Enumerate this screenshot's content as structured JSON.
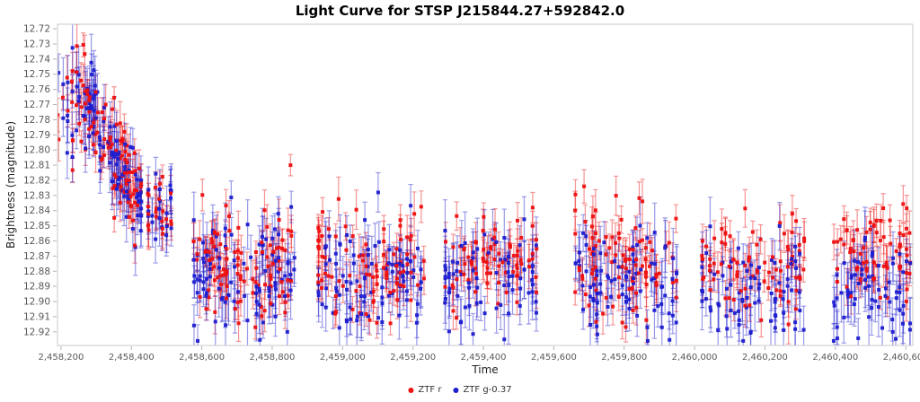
{
  "chart_data": {
    "type": "scatter",
    "title": "Light Curve for STSP J215844.27+592842.0",
    "xlabel": "Time",
    "ylabel": "Brightness (magnitude)",
    "grid": false,
    "legend_position": "bottom-center",
    "x_axis": {
      "min": 2458190,
      "max": 2460620,
      "tick_values": [
        2458200,
        2458400,
        2458600,
        2458800,
        2459000,
        2459200,
        2459400,
        2459600,
        2459800,
        2460000,
        2460200,
        2460400,
        2460600
      ],
      "tick_labels": [
        "2,458,200",
        "2,458,400",
        "2,458,600",
        "2,458,800",
        "2,459,000",
        "2,459,200",
        "2,459,400",
        "2,459,600",
        "2,459,800",
        "2,460,000",
        "2,460,200",
        "2,460,400",
        "2,460,600"
      ]
    },
    "y_axis": {
      "min": 12.717,
      "max": 12.929,
      "inverted": true,
      "tick_values": [
        12.72,
        12.73,
        12.74,
        12.75,
        12.76,
        12.77,
        12.78,
        12.79,
        12.8,
        12.81,
        12.82,
        12.83,
        12.84,
        12.85,
        12.86,
        12.87,
        12.88,
        12.89,
        12.9,
        12.91,
        12.92
      ],
      "tick_labels": [
        "12.72",
        "12.73",
        "12.74",
        "12.75",
        "12.76",
        "12.77",
        "12.78",
        "12.79",
        "12.80",
        "12.81",
        "12.82",
        "12.83",
        "12.84",
        "12.85",
        "12.86",
        "12.87",
        "12.88",
        "12.89",
        "12.90",
        "12.91",
        "12.92"
      ]
    },
    "series": [
      {
        "name": "ZTF r",
        "color": "#ee1010",
        "marker": "square"
      },
      {
        "name": "ZTF g-0.37",
        "color": "#1e1ecf",
        "marker": "square"
      }
    ],
    "seed": 20180921,
    "clusters": [
      {
        "s": 0,
        "t0": 2458192,
        "t1": 2458232,
        "n": 11,
        "m0": 12.775,
        "m1": 12.775,
        "sig": 0.018,
        "err": 0.011,
        "errs": 0.004
      },
      {
        "s": 1,
        "t0": 2458192,
        "t1": 2458232,
        "n": 11,
        "m0": 12.775,
        "m1": 12.775,
        "sig": 0.018,
        "err": 0.014,
        "errs": 0.005
      },
      {
        "s": 0,
        "t0": 2458245,
        "t1": 2458428,
        "n": 95,
        "m0": 12.757,
        "m1": 12.835,
        "sig": 0.016,
        "err": 0.011,
        "errs": 0.004
      },
      {
        "s": 1,
        "t0": 2458245,
        "t1": 2458428,
        "n": 95,
        "m0": 12.757,
        "m1": 12.835,
        "sig": 0.016,
        "err": 0.015,
        "errs": 0.005
      },
      {
        "s": 0,
        "t0": 2458448,
        "t1": 2458480,
        "n": 13,
        "m0": 12.841,
        "m1": 12.841,
        "sig": 0.013,
        "err": 0.011,
        "errs": 0.004
      },
      {
        "s": 1,
        "t0": 2458448,
        "t1": 2458480,
        "n": 12,
        "m0": 12.841,
        "m1": 12.841,
        "sig": 0.013,
        "err": 0.015,
        "errs": 0.005
      },
      {
        "s": 0,
        "t0": 2458488,
        "t1": 2458512,
        "n": 10,
        "m0": 12.845,
        "m1": 12.845,
        "sig": 0.011,
        "err": 0.01,
        "errs": 0.003
      },
      {
        "s": 1,
        "t0": 2458488,
        "t1": 2458512,
        "n": 10,
        "m0": 12.845,
        "m1": 12.845,
        "sig": 0.011,
        "err": 0.014,
        "errs": 0.004
      },
      {
        "s": 0,
        "t0": 2458578,
        "t1": 2458862,
        "n": 105,
        "m0": 12.876,
        "m1": 12.876,
        "sig": 0.019,
        "err": 0.011,
        "errs": 0.004
      },
      {
        "s": 1,
        "t0": 2458578,
        "t1": 2458862,
        "n": 100,
        "m0": 12.885,
        "m1": 12.885,
        "sig": 0.02,
        "err": 0.015,
        "errs": 0.005
      },
      {
        "s": 0,
        "t0": 2458932,
        "t1": 2459232,
        "n": 95,
        "m0": 12.876,
        "m1": 12.876,
        "sig": 0.017,
        "err": 0.011,
        "errs": 0.004
      },
      {
        "s": 1,
        "t0": 2458932,
        "t1": 2459232,
        "n": 92,
        "m0": 12.884,
        "m1": 12.884,
        "sig": 0.018,
        "err": 0.015,
        "errs": 0.005
      },
      {
        "s": 0,
        "t0": 2459292,
        "t1": 2459550,
        "n": 75,
        "m0": 12.877,
        "m1": 12.877,
        "sig": 0.016,
        "err": 0.011,
        "errs": 0.004
      },
      {
        "s": 1,
        "t0": 2459292,
        "t1": 2459550,
        "n": 73,
        "m0": 12.886,
        "m1": 12.886,
        "sig": 0.017,
        "err": 0.016,
        "errs": 0.005
      },
      {
        "s": 0,
        "t0": 2459662,
        "t1": 2459948,
        "n": 92,
        "m0": 12.872,
        "m1": 12.872,
        "sig": 0.018,
        "err": 0.011,
        "errs": 0.004
      },
      {
        "s": 1,
        "t0": 2459662,
        "t1": 2459948,
        "n": 88,
        "m0": 12.887,
        "m1": 12.887,
        "sig": 0.018,
        "err": 0.015,
        "errs": 0.005
      },
      {
        "s": 0,
        "t0": 2460022,
        "t1": 2460310,
        "n": 82,
        "m0": 12.877,
        "m1": 12.877,
        "sig": 0.015,
        "err": 0.01,
        "errs": 0.004
      },
      {
        "s": 1,
        "t0": 2460022,
        "t1": 2460310,
        "n": 78,
        "m0": 12.891,
        "m1": 12.891,
        "sig": 0.016,
        "err": 0.015,
        "errs": 0.005
      },
      {
        "s": 0,
        "t0": 2460396,
        "t1": 2460612,
        "n": 72,
        "m0": 12.87,
        "m1": 12.87,
        "sig": 0.014,
        "err": 0.011,
        "errs": 0.004
      },
      {
        "s": 1,
        "t0": 2460396,
        "t1": 2460612,
        "n": 68,
        "m0": 12.892,
        "m1": 12.892,
        "sig": 0.015,
        "err": 0.016,
        "errs": 0.005
      }
    ],
    "outlier_points": [
      {
        "s": 0,
        "t": 2458852,
        "m": 12.81,
        "e": 0.007
      },
      {
        "s": 1,
        "t": 2459101,
        "m": 12.828,
        "e": 0.013
      },
      {
        "s": 0,
        "t": 2459540,
        "m": 12.838,
        "e": 0.01
      },
      {
        "s": 0,
        "t": 2459686,
        "m": 12.824,
        "e": 0.011
      },
      {
        "s": 0,
        "t": 2459792,
        "m": 12.846,
        "e": 0.009
      },
      {
        "s": 0,
        "t": 2460026,
        "m": 12.884,
        "e": 0.006
      }
    ]
  },
  "colors": {
    "background": "#ffffff",
    "axis_border": "#c9c9c9",
    "tick_mark": "#b3b3b3",
    "tick_label": "#595959",
    "axis_label": "#222222",
    "title": "#000000",
    "legend_text": "#333333"
  }
}
